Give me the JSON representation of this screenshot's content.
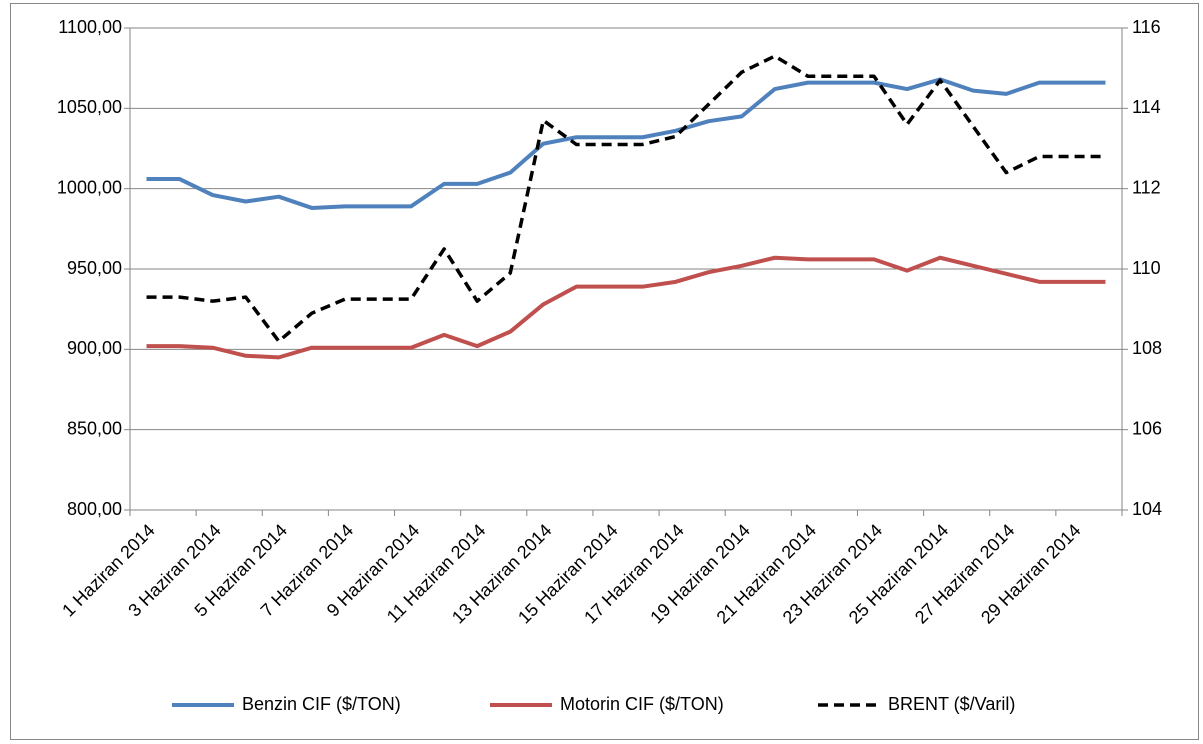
{
  "chart_data": {
    "type": "line",
    "categories": [
      "1 Haziran 2014",
      null,
      "3 Haziran 2014",
      null,
      "5 Haziran 2014",
      null,
      "7 Haziran 2014",
      null,
      "9 Haziran 2014",
      null,
      "11 Haziran 2014",
      null,
      "13 Haziran 2014",
      null,
      "15 Haziran 2014",
      null,
      "17 Haziran 2014",
      null,
      "19 Haziran 2014",
      null,
      "21 Haziran 2014",
      null,
      "23 Haziran 2014",
      null,
      "25 Haziran 2014",
      null,
      "27 Haziran 2014",
      null,
      "29 Haziran 2014",
      null
    ],
    "series": [
      {
        "name": "Benzin CIF ($/TON)",
        "color": "#4f81bd",
        "dash": false,
        "values": [
          1006,
          1006,
          996,
          992,
          995,
          988,
          989,
          989,
          989,
          1003,
          1003,
          1010,
          1028,
          1032,
          1032,
          1032,
          1036,
          1042,
          1045,
          1062,
          1066,
          1066,
          1066,
          1062,
          1068,
          1061,
          1059,
          1066,
          1066,
          1066
        ]
      },
      {
        "name": "Motorin CIF ($/TON)",
        "color": "#c0504d",
        "dash": false,
        "values": [
          902,
          902,
          901,
          896,
          895,
          901,
          901,
          901,
          901,
          909,
          902,
          911,
          928,
          939,
          939,
          939,
          942,
          948,
          952,
          957,
          956,
          956,
          956,
          949,
          957,
          952,
          947,
          942,
          942,
          942
        ]
      },
      {
        "name": "BRENT ($/Varil)",
        "color": "#000000",
        "dash": true,
        "axis": "y2",
        "values": [
          109.3,
          109.3,
          109.2,
          109.3,
          108.2,
          108.9,
          109.25,
          109.25,
          109.25,
          110.5,
          109.2,
          109.9,
          113.7,
          113.1,
          113.1,
          113.1,
          113.3,
          114.1,
          114.9,
          115.3,
          114.8,
          114.8,
          114.8,
          113.6,
          114.7,
          113.55,
          112.4,
          112.8,
          112.8,
          112.8
        ]
      }
    ],
    "ylim": [
      800,
      1100
    ],
    "yticks": [
      {
        "value": 800,
        "label": "800,00"
      },
      {
        "value": 850,
        "label": "850,00"
      },
      {
        "value": 900,
        "label": "900,00"
      },
      {
        "value": 950,
        "label": "950,00"
      },
      {
        "value": 1000,
        "label": "1000,00"
      },
      {
        "value": 1050,
        "label": "1050,00"
      },
      {
        "value": 1100,
        "label": "1100,00"
      }
    ],
    "y2lim": [
      104,
      116
    ],
    "y2ticks": [
      104,
      106,
      108,
      110,
      112,
      114,
      116
    ],
    "grid": true,
    "legend": "bottom"
  }
}
